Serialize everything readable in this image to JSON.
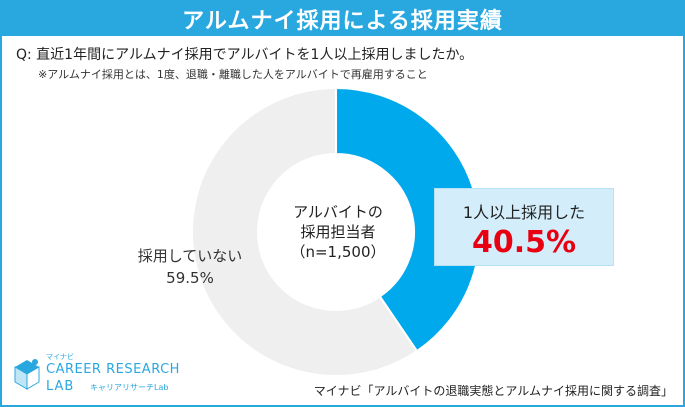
{
  "header": {
    "title": "アルムナイ採用による採用実績"
  },
  "question": "Q: 直近1年間にアルムナイ採用でアルバイトを1人以上採用しましたか。",
  "note": "※アルムナイ採用とは、1度、退職・離職した人をアルバイトで再雇用すること",
  "center_label": {
    "line1": "アルバイトの",
    "line2": "採用担当者",
    "line3": "（n=1,500）"
  },
  "logo": {
    "small_text": "マイナビ",
    "line1": "CAREER RESEARCH",
    "line2": "LAB",
    "sub": "キャリアリサーチLab"
  },
  "source": "マイナビ「アルバイトの退職実態とアルムナイ採用に関する調査」",
  "colors": {
    "accent": "#29a8e0",
    "highlight_slice": "#00a9ec",
    "other_slice": "#efefef",
    "highlight_value": "#e60012",
    "callout_bg": "#d3eefa"
  },
  "chart_data": {
    "type": "pie",
    "donut": true,
    "slices": [
      {
        "label": "1人以上採用した",
        "value": 40.5,
        "display": "40.5%"
      },
      {
        "label": "採用していない",
        "value": 59.5,
        "display": "59.5%"
      }
    ]
  }
}
